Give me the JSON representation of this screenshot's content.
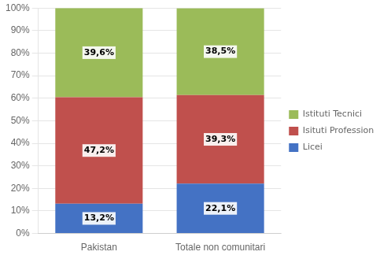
{
  "chart_data": {
    "type": "bar",
    "stacked": true,
    "categories": [
      "Pakistan",
      "Totale non comunitari"
    ],
    "series": [
      {
        "name": "Licei",
        "color": "#4472C4",
        "values": [
          13.2,
          22.1
        ],
        "value_labels": [
          "13,2%",
          "22,1%"
        ]
      },
      {
        "name": "Isituti Professionali",
        "color": "#C0504D",
        "values": [
          47.2,
          39.3
        ],
        "value_labels": [
          "47,2%",
          "39,3%"
        ]
      },
      {
        "name": "Istituti Tecnici",
        "color": "#9BBB59",
        "values": [
          39.6,
          38.5
        ],
        "value_labels": [
          "39,6%",
          "38,5%"
        ]
      }
    ],
    "ylim": [
      0,
      100
    ],
    "yticks": [
      {
        "value": 0,
        "label": "0%"
      },
      {
        "value": 10,
        "label": "10%"
      },
      {
        "value": 20,
        "label": "20%"
      },
      {
        "value": 30,
        "label": "30%"
      },
      {
        "value": 40,
        "label": "40%"
      },
      {
        "value": 50,
        "label": "50%"
      },
      {
        "value": 60,
        "label": "60%"
      },
      {
        "value": 70,
        "label": "70%"
      },
      {
        "value": 80,
        "label": "80%"
      },
      {
        "value": 90,
        "label": "90%"
      },
      {
        "value": 100,
        "label": "100%"
      }
    ],
    "grid": true,
    "legend": "right",
    "data_labels": true
  }
}
